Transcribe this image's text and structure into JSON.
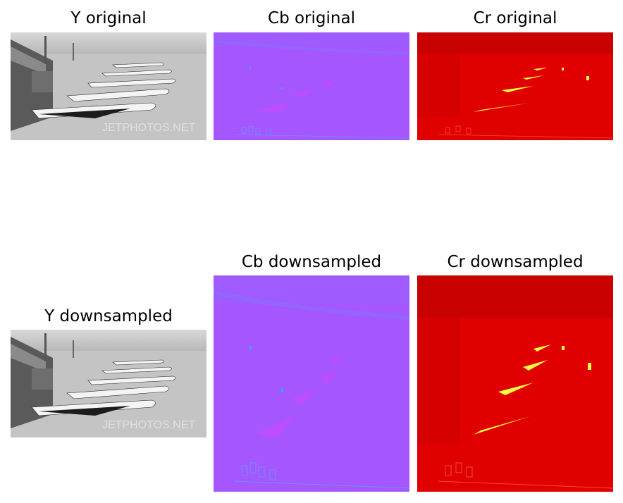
{
  "figure": {
    "panels": [
      {
        "id": "y-original",
        "title": "Y original",
        "channel": "Y",
        "variant": "original",
        "colormap": "gray"
      },
      {
        "id": "cb-original",
        "title": "Cb original",
        "channel": "Cb",
        "variant": "original",
        "colormap": "cool"
      },
      {
        "id": "cr-original",
        "title": "Cr original",
        "channel": "Cr",
        "variant": "original",
        "colormap": "hot"
      },
      {
        "id": "y-downsampled",
        "title": "Y downsampled",
        "channel": "Y",
        "variant": "downsampled",
        "colormap": "gray"
      },
      {
        "id": "cb-downsampled",
        "title": "Cb downsampled",
        "channel": "Cb",
        "variant": "downsampled",
        "colormap": "cool"
      },
      {
        "id": "cr-downsampled",
        "title": "Cr downsampled",
        "channel": "Cr",
        "variant": "downsampled",
        "colormap": "hot"
      }
    ],
    "watermark": "JETPHOTOS.NET"
  }
}
